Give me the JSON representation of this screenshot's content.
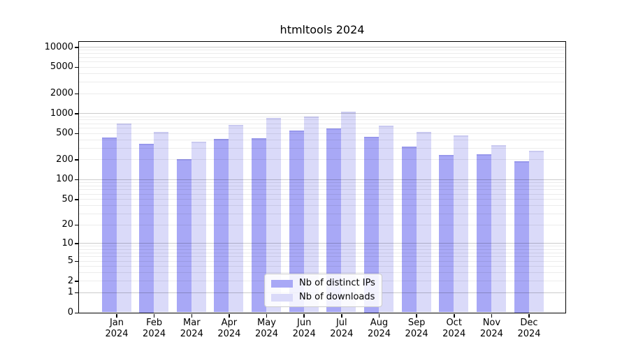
{
  "chart_data": {
    "type": "bar",
    "title": "htmltools 2024",
    "categories": [
      "Jan",
      "Feb",
      "Mar",
      "Apr",
      "May",
      "Jun",
      "Jul",
      "Aug",
      "Sep",
      "Oct",
      "Nov",
      "Dec"
    ],
    "category_year": "2024",
    "series": [
      {
        "name": "Nb of distinct IPs",
        "color": "#a8a8f6",
        "edge_color": "#9898ec",
        "values": [
          430,
          345,
          200,
          410,
          420,
          545,
          585,
          440,
          315,
          235,
          240,
          190
        ]
      },
      {
        "name": "Nb of downloads",
        "color": "#dadaf9",
        "edge_color": "#c9c9f0",
        "values": [
          700,
          520,
          370,
          660,
          840,
          890,
          1060,
          645,
          520,
          460,
          330,
          270
        ]
      }
    ],
    "yscale": "log1p",
    "ylim": [
      0,
      12000
    ],
    "yticks_labeled": [
      10000,
      5000,
      2000,
      1000,
      500,
      200,
      100,
      50,
      20,
      10,
      5,
      2,
      1,
      0
    ],
    "ymajor_grid": [
      1,
      10,
      100,
      1000,
      10000
    ],
    "yminor_decades": [
      1,
      10,
      100,
      1000
    ],
    "grid": "on",
    "legend_position": "lower center",
    "colors": {
      "background": "#ffffff",
      "axis": "#000000",
      "text": "#000000",
      "major_grid": "rgba(0,0,0,0.2)",
      "minor_grid": "rgba(0,0,0,0.075)"
    }
  }
}
